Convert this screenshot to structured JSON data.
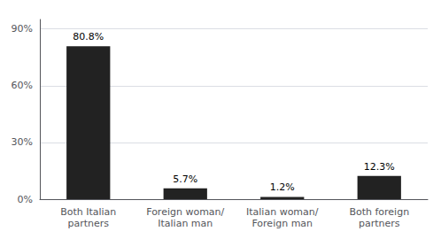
{
  "chart_data": {
    "type": "bar",
    "categories": [
      "Both Italian\npartners",
      "Foreign woman/\nItalian man",
      "Italian woman/\nForeign man",
      "Both foreign\npartners"
    ],
    "values": [
      80.8,
      5.7,
      1.2,
      12.3
    ],
    "value_labels": [
      "80.8%",
      "5.7%",
      "1.2%",
      "12.3%"
    ],
    "data_labels": true,
    "color": "#222222",
    "ylim": [
      0,
      95
    ],
    "yticks": [
      {
        "value": 0,
        "label": "0%"
      },
      {
        "value": 30,
        "label": "30%"
      },
      {
        "value": 60,
        "label": "60%"
      },
      {
        "value": 90,
        "label": "90%"
      }
    ],
    "grid": true
  }
}
